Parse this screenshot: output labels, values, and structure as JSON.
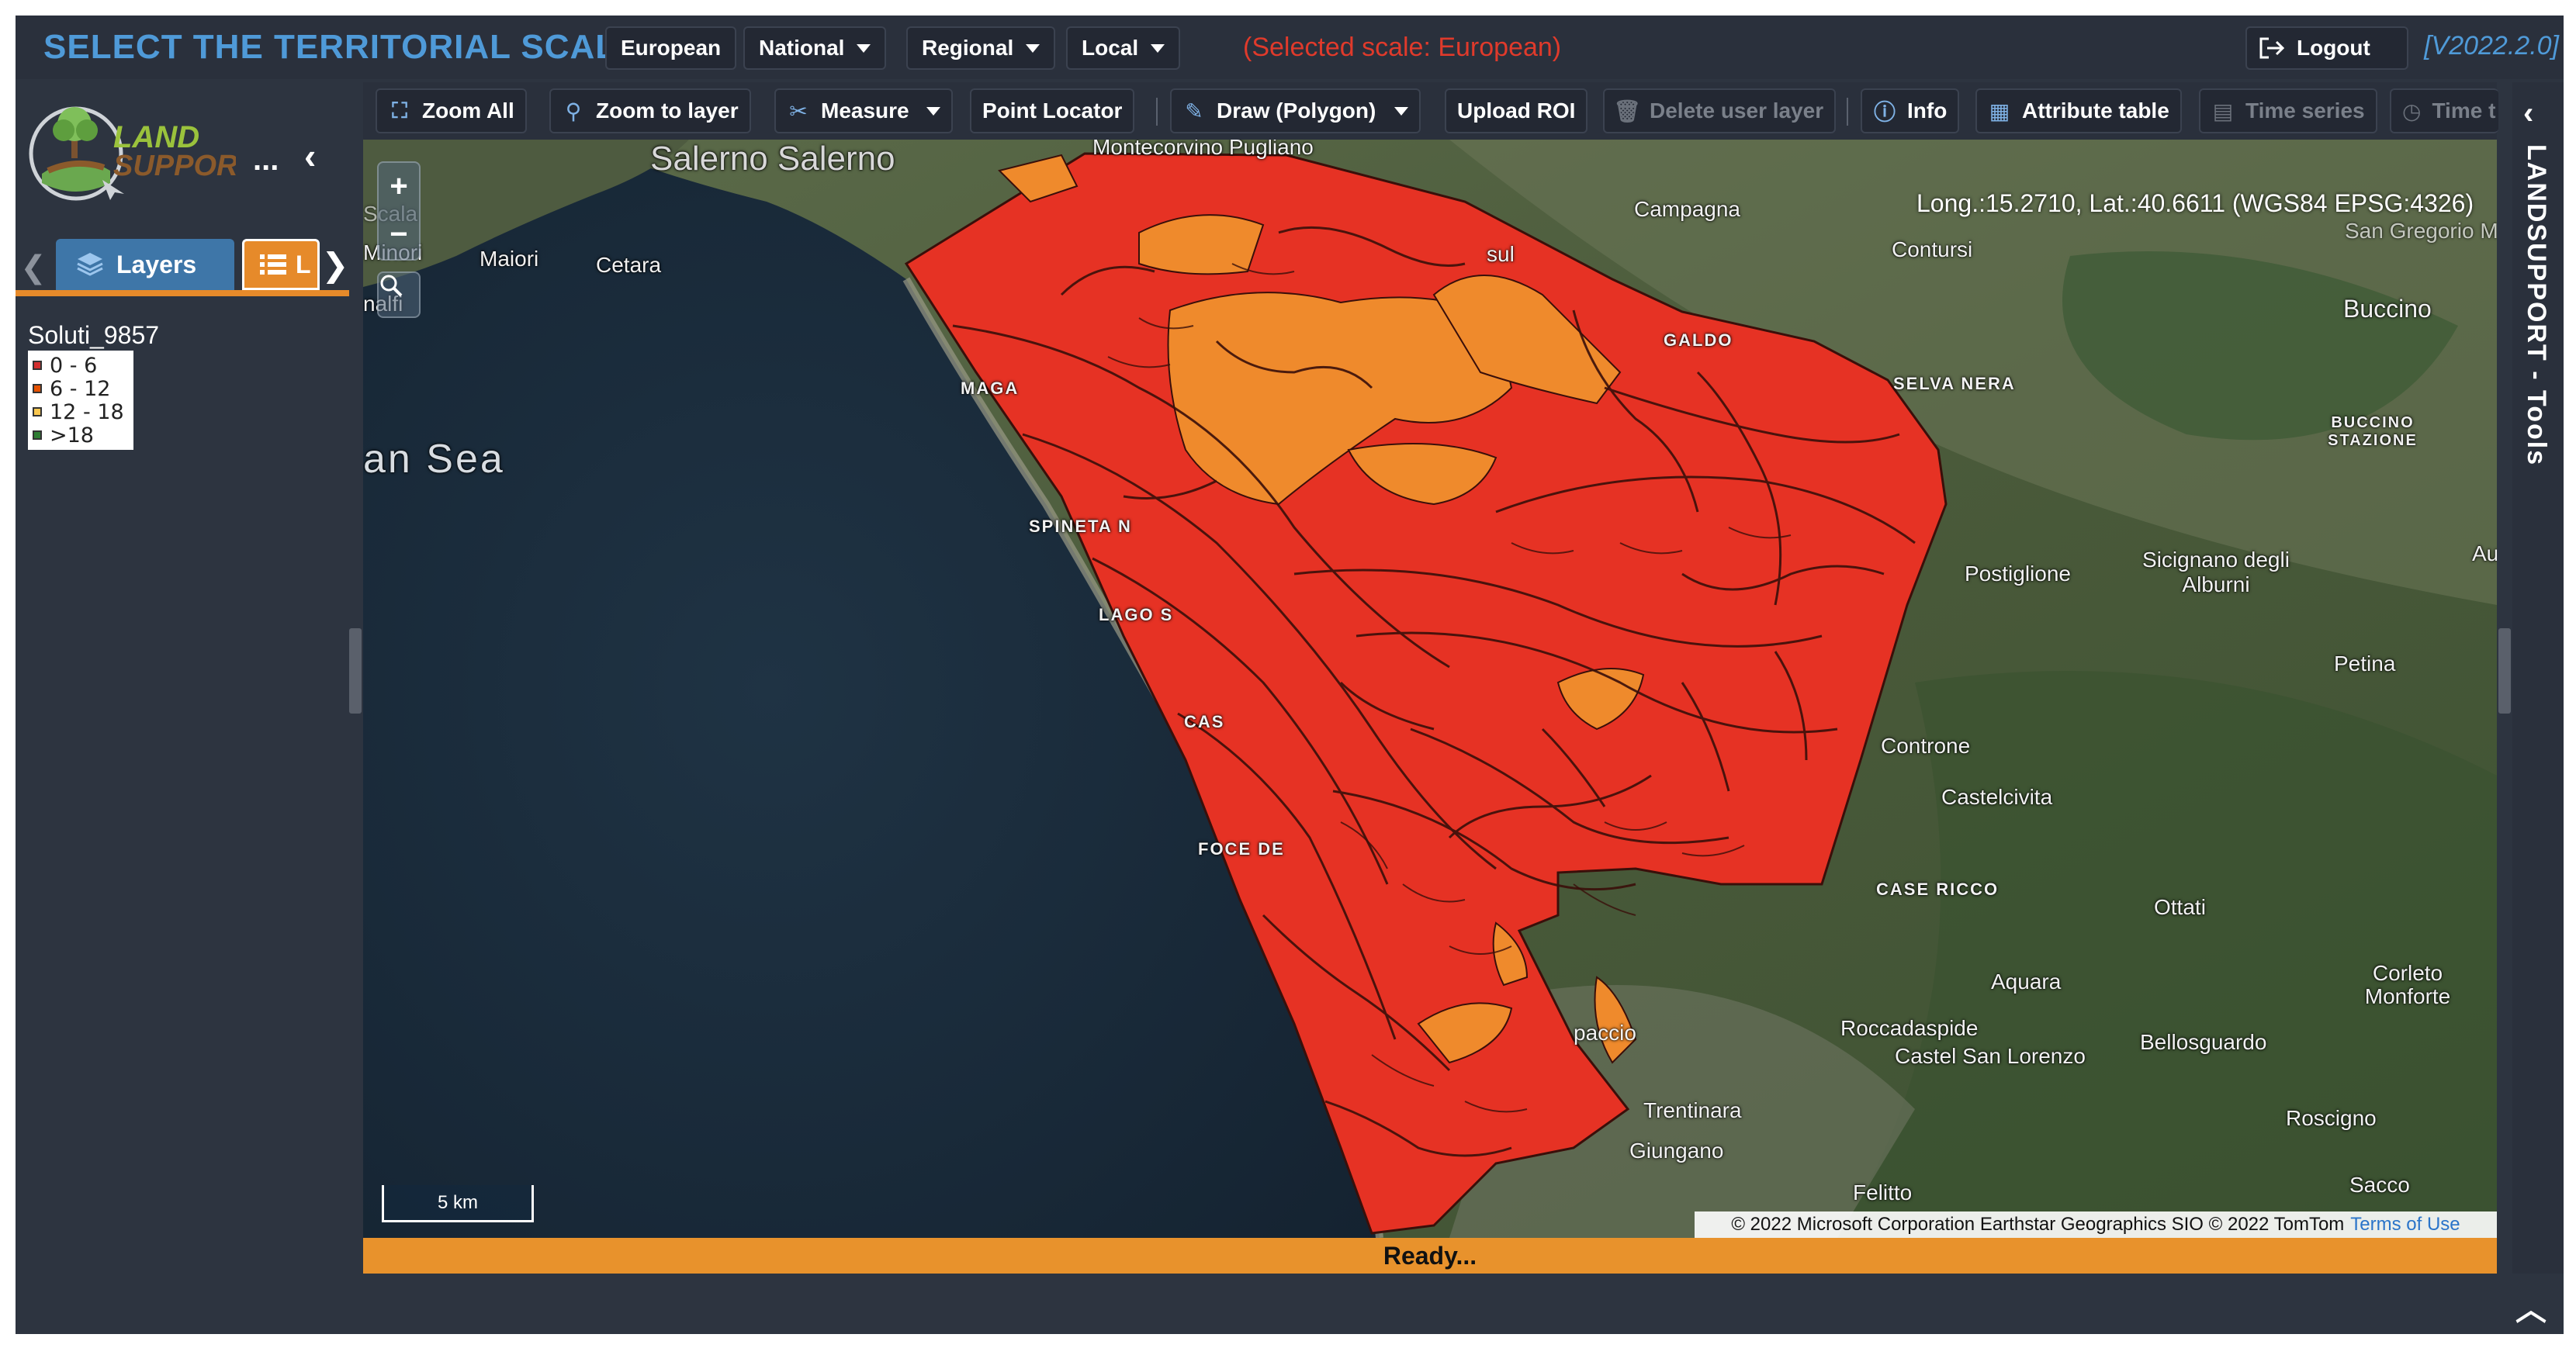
{
  "topbar": {
    "title": "SELECT THE TERRITORIAL SCALE:",
    "scales": [
      {
        "label": "European",
        "dropdown": false
      },
      {
        "label": "National",
        "dropdown": true
      },
      {
        "label": "Regional",
        "dropdown": true
      },
      {
        "label": "Local",
        "dropdown": true
      }
    ],
    "selected_scale": "(Selected scale: European)",
    "logout_label": "Logout",
    "version": "[V2022.2.0]"
  },
  "left_panel": {
    "logo_text_top": "LAND",
    "logo_text_bottom": "SUPPORT",
    "more_label": "...",
    "tabs": {
      "layers_label": "Layers",
      "legend_label": "L"
    },
    "legend": {
      "title": "Soluti_9857",
      "items": [
        {
          "label": "0 - 6",
          "color": "#d32f2f"
        },
        {
          "label": "6 - 12",
          "color": "#e65100"
        },
        {
          "label": "12 - 18",
          "color": "#f9c74f"
        },
        {
          "label": ">18",
          "color": "#2e7d32"
        }
      ]
    }
  },
  "toolbar": {
    "zoom_all": "Zoom All",
    "zoom_to_layer": "Zoom to layer",
    "measure": "Measure",
    "point_locator": "Point Locator",
    "draw": "Draw (Polygon)",
    "upload_roi": "Upload ROI",
    "delete_user_layer": "Delete user layer",
    "info": "Info",
    "attribute_table": "Attribute table",
    "time_series": "Time series",
    "time_truncated": "Time t"
  },
  "map": {
    "coordinates": "Long.:15.2710, Lat.:40.6611 (WGS84 EPSG:4326)",
    "scale_bar": "5 km",
    "copyright": "© 2022 Microsoft Corporation Earthstar Geographics SIO © 2022 TomTom",
    "terms": "Terms of Use",
    "zoom_in": "+",
    "zoom_out": "−",
    "polygon_colors": {
      "class_0_6": "#e63224",
      "class_6_12": "#ef8a2c",
      "outline": "#3a0f0a"
    },
    "places": [
      {
        "name": "Salerno Salerno",
        "style": "big"
      },
      {
        "name": "Montecorvino Pugliano",
        "style": ""
      },
      {
        "name": "Campagna",
        "style": ""
      },
      {
        "name": "Contursi",
        "style": ""
      },
      {
        "name": "San Gregorio M",
        "style": ""
      },
      {
        "name": "Buccino",
        "style": ""
      },
      {
        "name": "Maiori",
        "style": ""
      },
      {
        "name": "Minori",
        "style": ""
      },
      {
        "name": "Cetara",
        "style": ""
      },
      {
        "name": "Scala",
        "style": ""
      },
      {
        "name": "an Sea",
        "style": "sea"
      },
      {
        "name": "MAGA",
        "style": "small"
      },
      {
        "name": "SPINETA N",
        "style": "small"
      },
      {
        "name": "LAGO S",
        "style": "small"
      },
      {
        "name": "CAS",
        "style": "small"
      },
      {
        "name": "FOCE DE",
        "style": "small"
      },
      {
        "name": "GALDO",
        "style": "small"
      },
      {
        "name": "SELVA NERA",
        "style": "small"
      },
      {
        "name": "BUCCINO STAZIONE",
        "style": "small"
      },
      {
        "name": "Postiglione",
        "style": ""
      },
      {
        "name": "Sicignano degli Alburni",
        "style": ""
      },
      {
        "name": "Petina",
        "style": ""
      },
      {
        "name": "Controne",
        "style": ""
      },
      {
        "name": "Castelcivita",
        "style": ""
      },
      {
        "name": "CASE RICCO",
        "style": "small"
      },
      {
        "name": "Ottati",
        "style": ""
      },
      {
        "name": "Aquara",
        "style": ""
      },
      {
        "name": "Corleto Monforte",
        "style": ""
      },
      {
        "name": "Roccadaspide",
        "style": ""
      },
      {
        "name": "Castel San Lorenzo",
        "style": ""
      },
      {
        "name": "Bellosguardo",
        "style": ""
      },
      {
        "name": "Roscigno",
        "style": ""
      },
      {
        "name": "Trentinara",
        "style": ""
      },
      {
        "name": "Giungano",
        "style": ""
      },
      {
        "name": "Felitto",
        "style": ""
      },
      {
        "name": "Sacco",
        "style": ""
      },
      {
        "name": "paccio",
        "style": ""
      },
      {
        "name": "sul",
        "style": ""
      },
      {
        "name": "Au",
        "style": ""
      },
      {
        "name": "nalfi",
        "style": ""
      }
    ]
  },
  "status": "Ready...",
  "right_panel": {
    "label": "LANDSUPPORT - Tools"
  }
}
